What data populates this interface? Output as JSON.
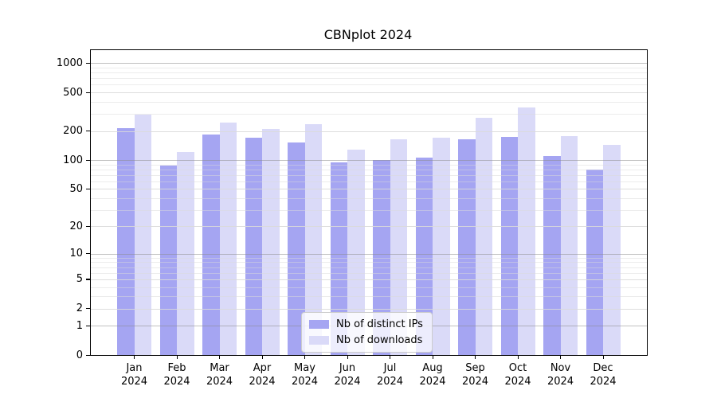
{
  "figure": {
    "title": "CBNplot 2024"
  },
  "chart_data": {
    "type": "bar",
    "title": "CBNplot 2024",
    "yscale": "log1p",
    "grid": true,
    "ylim": [
      0,
      1360
    ],
    "yticks": [
      0,
      1,
      2,
      5,
      10,
      20,
      50,
      100,
      200,
      500,
      1000
    ],
    "minor_yticks": [
      3,
      4,
      6,
      7,
      8,
      9,
      30,
      40,
      60,
      70,
      80,
      90,
      300,
      400,
      600,
      700,
      800,
      900
    ],
    "categories": [
      "Jan",
      "Feb",
      "Mar",
      "Apr",
      "May",
      "Jun",
      "Jul",
      "Aug",
      "Sep",
      "Oct",
      "Nov",
      "Dec"
    ],
    "x_year": "2024",
    "series": [
      {
        "name": "Nb of distinct IPs",
        "color": "#a5a5f2",
        "values": [
          215,
          87,
          185,
          170,
          152,
          94,
          100,
          107,
          165,
          173,
          110,
          80
        ]
      },
      {
        "name": "Nb of downloads",
        "color": "#dadaf8",
        "values": [
          295,
          120,
          245,
          210,
          235,
          127,
          165,
          172,
          272,
          350,
          178,
          145
        ]
      }
    ],
    "legend_position": "lower center",
    "colors": {
      "major_gridline": "#8c8c8c",
      "minor_gridline": "#d9d9d9",
      "axis": "#000000"
    }
  }
}
